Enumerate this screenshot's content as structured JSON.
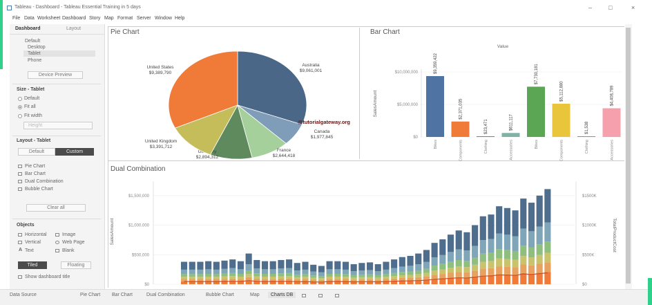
{
  "window": {
    "title": "Tableau - Dashboard - Tableau Essential Training in 5 days",
    "controls": {
      "minimize": "–",
      "maximize": "□",
      "close": "×"
    }
  },
  "menu": [
    "File",
    "Data",
    "Worksheet",
    "Dashboard",
    "Story",
    "Map",
    "Format",
    "Server",
    "Window",
    "Help"
  ],
  "side": {
    "tabs": {
      "dashboard": "Dashboard",
      "layout": "Layout"
    },
    "device": {
      "default": "Default",
      "desktop": "Desktop",
      "tablet": "Tablet",
      "phone": "Phone"
    },
    "device_preview_btn": "Device Preview",
    "size_header": "Size - Tablet",
    "size_options": {
      "default": "Default",
      "fit_all": "Fit all",
      "fit_width": "Fit width"
    },
    "size_dropdown": "Height",
    "layout_header": "Layout - Tablet",
    "layout_btns": {
      "default": "Default",
      "custom": "Custom"
    },
    "sheets": [
      "Pie Chart",
      "Bar Chart",
      "Dual Combination",
      "Bubble Chart"
    ],
    "clear_all": "Clear all",
    "objects_header": "Objects",
    "objects": {
      "horizontal": "Horizontal",
      "image": "Image",
      "vertical": "Vertical",
      "webpage": "Web Page",
      "text": "Text",
      "blank": "Blank"
    },
    "tiled": "Tiled",
    "floating": "Floating",
    "show_title": "Show dashboard title"
  },
  "sections": {
    "pie_title": "Pie Chart",
    "bar_title": "Bar Chart",
    "combo_title": "Dual Combination"
  },
  "watermark": "@tutorialgateway.org",
  "bottom_tabs": {
    "datasource": "Data Source",
    "items": [
      "Pie Chart",
      "Bar Chart",
      "Dual Combination",
      "Bubble Chart",
      "Map"
    ],
    "active": "Charts DB"
  },
  "colors": {
    "orange": "#f07b39",
    "blue": "#4f74a3",
    "green": "#5aa654",
    "yellow": "#e8c53b",
    "red": "#e0564f",
    "pink": "#f5a0ac",
    "teal": "#7fb3a6",
    "accent": "#2fd18a"
  },
  "chart_data": [
    {
      "type": "pie",
      "title": "Pie Chart",
      "slices": [
        {
          "label": "Australia",
          "value_label": "$9,061,001",
          "value": 9061001,
          "color": "#4a6787"
        },
        {
          "label": "Canada",
          "value_label": "$1,977,845",
          "value": 1977845,
          "color": "#7f9cb8"
        },
        {
          "label": "France",
          "value_label": "$2,644,418",
          "value": 2644418,
          "color": "#a5d09b"
        },
        {
          "label": "Germany",
          "value_label": "$2,894,312",
          "value": 2894312,
          "color": "#5f8a5e"
        },
        {
          "label": "United Kingdom",
          "value_label": "$3,391,712",
          "value": 3391712,
          "color": "#c5bd5a"
        },
        {
          "label": "United States",
          "value_label": "$9,389,790",
          "value": 9389790,
          "color": "#f07b39"
        }
      ]
    },
    {
      "type": "bar",
      "title": "Bar Chart",
      "header": "Value",
      "ylabel": "SalesAmount",
      "ylim": [
        0,
        10000000
      ],
      "yticks": [
        "$0",
        "$5,000,000",
        "$10,000,000"
      ],
      "categories": [
        "Bikes",
        "Components",
        "Clothing",
        "Accessories",
        "Bikes",
        "Components",
        "Clothing",
        "Accessories"
      ],
      "value_labels": [
        "$9,359,422",
        "$2,371,035",
        "$23,471",
        "$611,117",
        "$7,730,181",
        "$5,112,880",
        "$1,538",
        "$4,408,789"
      ],
      "values": [
        9359422,
        2371035,
        23471,
        611117,
        7730181,
        5112880,
        1538,
        4408789
      ],
      "colors": [
        "#4f74a3",
        "#f07b39",
        "#e0564f",
        "#7fb3a6",
        "#5aa654",
        "#e8c53b",
        "#b07aa1",
        "#f5a0ac"
      ]
    },
    {
      "type": "bar",
      "title": "Dual Combination",
      "ylabel": "SalesAmount",
      "y2label": "TotalProductCost",
      "yticks": [
        "$0",
        "$500,000",
        "$1,000,000",
        "$1,500,000"
      ],
      "y2ticks": [
        "$0",
        "$500K",
        "$1000K",
        "$1500K"
      ],
      "ylim": [
        0,
        1900000
      ],
      "stack_colors": [
        "#f07b39",
        "#e8a25f",
        "#c9c46b",
        "#8fbf7f",
        "#7fa6b8",
        "#4f6d8c"
      ],
      "totals": [
        380000,
        380000,
        380000,
        390000,
        380000,
        400000,
        420000,
        390000,
        520000,
        410000,
        390000,
        390000,
        410000,
        420000,
        360000,
        380000,
        330000,
        310000,
        390000,
        390000,
        380000,
        340000,
        360000,
        370000,
        340000,
        380000,
        420000,
        460000,
        480000,
        520000,
        580000,
        700000,
        760000,
        840000,
        910000,
        880000,
        1000000,
        1150000,
        1180000,
        1320000,
        1290000,
        1250000,
        1450000,
        1380000,
        1500000,
        1610000
      ]
    }
  ]
}
